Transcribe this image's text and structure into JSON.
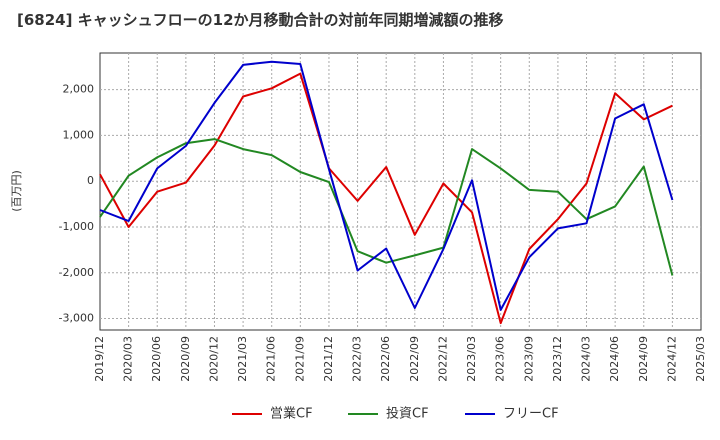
{
  "chart_data": {
    "type": "line",
    "title": "[6824]  キャッシュフローの12か月移動合計の対前年同期増減額の推移",
    "ylabel": "(百万円)",
    "xlabel": "",
    "ylim": [
      -3250,
      2800
    ],
    "yticks": [
      2000,
      1000,
      0,
      -1000,
      -2000,
      -3000
    ],
    "ytick_labels": [
      "2,000",
      "1,000",
      "0",
      "-1,000",
      "-2,000",
      "-3,000"
    ],
    "x": [
      "2019/12",
      "2020/03",
      "2020/06",
      "2020/09",
      "2020/12",
      "2021/03",
      "2021/06",
      "2021/09",
      "2021/12",
      "2022/03",
      "2022/06",
      "2022/09",
      "2022/12",
      "2023/03",
      "2023/06",
      "2023/09",
      "2023/12",
      "2024/03",
      "2024/06",
      "2024/09",
      "2024/12",
      "2025/03"
    ],
    "grid": true,
    "legend": "bottom",
    "series": [
      {
        "name": "営業CF",
        "color": "#dd0000",
        "values": [
          150,
          -1000,
          -230,
          -30,
          780,
          1850,
          2030,
          2350,
          280,
          -430,
          310,
          -1170,
          -50,
          -680,
          -3100,
          -1480,
          -830,
          -50,
          1920,
          1350,
          1650,
          null
        ]
      },
      {
        "name": "投資CF",
        "color": "#228822",
        "values": [
          -780,
          120,
          520,
          830,
          920,
          700,
          570,
          200,
          -20,
          -1530,
          -1780,
          -1620,
          -1450,
          700,
          280,
          -190,
          -230,
          -830,
          -550,
          320,
          -2060,
          null
        ]
      },
      {
        "name": "フリーCF",
        "color": "#0000cc",
        "values": [
          -630,
          -870,
          280,
          770,
          1710,
          2540,
          2610,
          2560,
          260,
          -1950,
          -1470,
          -2770,
          -1480,
          20,
          -2810,
          -1660,
          -1030,
          -920,
          1370,
          1680,
          -410,
          null
        ]
      }
    ]
  }
}
